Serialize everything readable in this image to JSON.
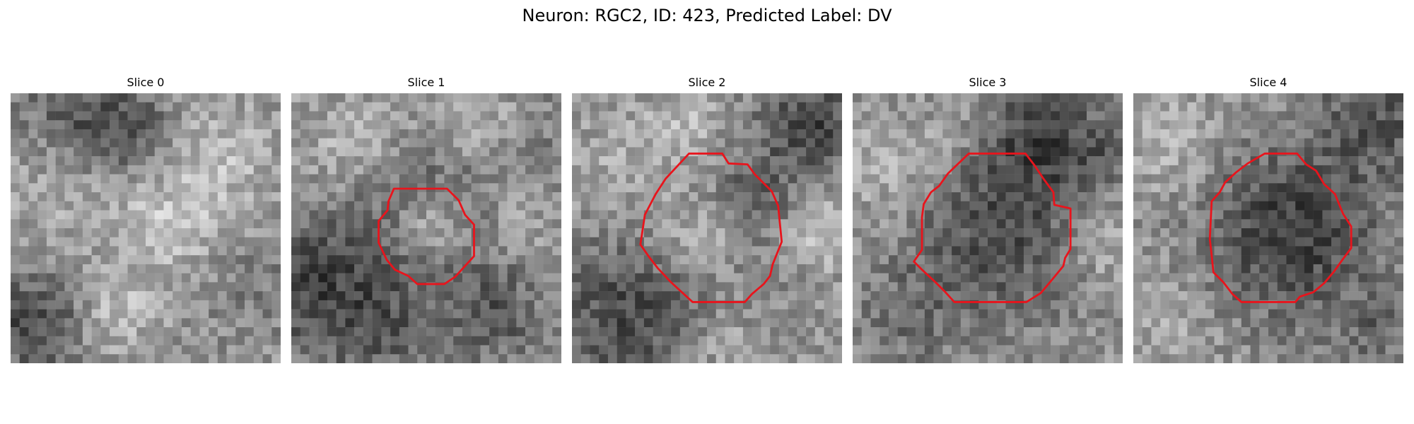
{
  "figure": {
    "title": "Neuron: RGC2, ID: 423, Predicted Label: DV"
  },
  "colors": {
    "contour": "#e8141c",
    "background": "#ffffff"
  },
  "slices": [
    {
      "title": "Slice 0",
      "has_contour": false,
      "image": "grayscale-microscopy-patch"
    },
    {
      "title": "Slice 1",
      "has_contour": true,
      "image": "grayscale-microscopy-patch"
    },
    {
      "title": "Slice 2",
      "has_contour": true,
      "image": "grayscale-microscopy-patch"
    },
    {
      "title": "Slice 3",
      "has_contour": true,
      "image": "grayscale-microscopy-patch"
    },
    {
      "title": "Slice 4",
      "has_contour": true,
      "image": "grayscale-microscopy-patch"
    }
  ]
}
